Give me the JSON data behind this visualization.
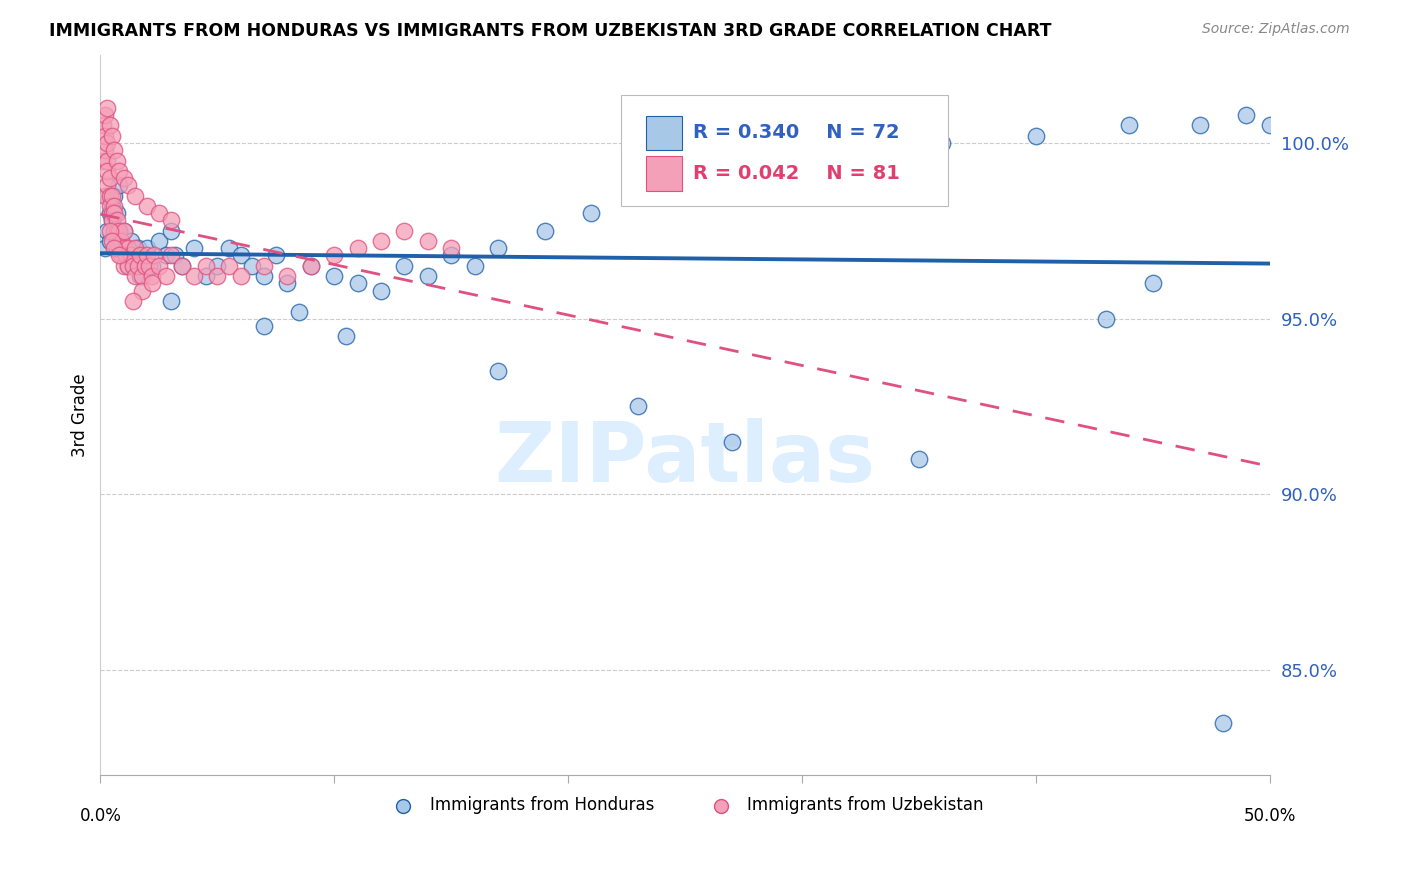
{
  "title": "IMMIGRANTS FROM HONDURAS VS IMMIGRANTS FROM UZBEKISTAN 3RD GRADE CORRELATION CHART",
  "source": "Source: ZipAtlas.com",
  "ylabel": "3rd Grade",
  "legend_r1": "R = 0.340",
  "legend_n1": "N = 72",
  "legend_r2": "R = 0.042",
  "legend_n2": "N = 81",
  "label1": "Immigrants from Honduras",
  "label2": "Immigrants from Uzbekistan",
  "color_blue": "#a8c8e8",
  "color_pink": "#f4a0b8",
  "color_blue_dark": "#2060a8",
  "color_pink_dark": "#e05080",
  "color_blue_text": "#3060c0",
  "color_pink_text": "#e04070",
  "watermark_color": "#ddeeff",
  "xlim": [
    0.0,
    50.0
  ],
  "ylim": [
    82.0,
    102.5
  ],
  "yticks": [
    85.0,
    90.0,
    95.0,
    100.0
  ],
  "hon_x": [
    0.2,
    0.3,
    0.3,
    0.4,
    0.4,
    0.5,
    0.5,
    0.6,
    0.6,
    0.7,
    0.7,
    0.8,
    0.8,
    0.9,
    1.0,
    1.0,
    1.1,
    1.2,
    1.3,
    1.4,
    1.5,
    1.6,
    1.7,
    1.8,
    2.0,
    2.2,
    2.5,
    2.8,
    3.0,
    3.2,
    3.5,
    4.0,
    4.5,
    5.0,
    5.5,
    6.0,
    6.5,
    7.0,
    7.5,
    8.0,
    9.0,
    10.0,
    11.0,
    12.0,
    13.0,
    14.0,
    15.0,
    16.0,
    17.0,
    19.0,
    21.0,
    24.0,
    26.0,
    28.0,
    32.0,
    36.0,
    40.0,
    44.0,
    47.0,
    49.0,
    50.0,
    3.0,
    7.0,
    8.5,
    10.5,
    17.0,
    23.0,
    27.0,
    35.0,
    43.0,
    45.0,
    48.0
  ],
  "hon_y": [
    97.0,
    97.5,
    98.5,
    97.2,
    98.0,
    97.8,
    98.2,
    97.5,
    98.5,
    97.0,
    98.0,
    97.5,
    98.8,
    97.2,
    96.8,
    97.5,
    97.0,
    96.5,
    97.2,
    96.8,
    96.5,
    97.0,
    96.2,
    96.8,
    97.0,
    96.5,
    97.2,
    96.8,
    97.5,
    96.8,
    96.5,
    97.0,
    96.2,
    96.5,
    97.0,
    96.8,
    96.5,
    96.2,
    96.8,
    96.0,
    96.5,
    96.2,
    96.0,
    95.8,
    96.5,
    96.2,
    96.8,
    96.5,
    97.0,
    97.5,
    98.0,
    98.5,
    98.8,
    99.2,
    99.5,
    100.0,
    100.2,
    100.5,
    100.5,
    100.8,
    100.5,
    95.5,
    94.8,
    95.2,
    94.5,
    93.5,
    92.5,
    91.5,
    91.0,
    95.0,
    96.0,
    83.5
  ],
  "uzb_x": [
    0.1,
    0.1,
    0.2,
    0.2,
    0.2,
    0.3,
    0.3,
    0.3,
    0.3,
    0.4,
    0.4,
    0.4,
    0.5,
    0.5,
    0.5,
    0.6,
    0.6,
    0.6,
    0.7,
    0.7,
    0.7,
    0.8,
    0.8,
    0.9,
    0.9,
    1.0,
    1.0,
    1.0,
    1.1,
    1.2,
    1.2,
    1.3,
    1.4,
    1.5,
    1.5,
    1.6,
    1.7,
    1.8,
    1.9,
    2.0,
    2.1,
    2.2,
    2.3,
    2.5,
    2.8,
    3.0,
    3.5,
    4.0,
    4.5,
    5.0,
    5.5,
    6.0,
    7.0,
    8.0,
    9.0,
    10.0,
    11.0,
    12.0,
    13.0,
    14.0,
    15.0,
    0.2,
    0.3,
    0.4,
    0.5,
    0.6,
    0.7,
    0.8,
    1.0,
    1.2,
    1.5,
    2.0,
    2.5,
    3.0,
    0.4,
    0.5,
    0.6,
    0.8,
    1.8,
    2.2,
    1.4
  ],
  "uzb_y": [
    99.5,
    100.5,
    99.8,
    100.2,
    98.5,
    99.5,
    100.0,
    98.8,
    99.2,
    98.5,
    99.0,
    98.2,
    98.0,
    98.5,
    97.8,
    98.2,
    97.5,
    98.0,
    97.5,
    97.8,
    97.2,
    97.5,
    97.0,
    97.2,
    96.8,
    97.0,
    97.5,
    96.5,
    96.8,
    97.0,
    96.5,
    96.8,
    96.5,
    97.0,
    96.2,
    96.5,
    96.8,
    96.2,
    96.5,
    96.8,
    96.5,
    96.2,
    96.8,
    96.5,
    96.2,
    96.8,
    96.5,
    96.2,
    96.5,
    96.2,
    96.5,
    96.2,
    96.5,
    96.2,
    96.5,
    96.8,
    97.0,
    97.2,
    97.5,
    97.2,
    97.0,
    100.8,
    101.0,
    100.5,
    100.2,
    99.8,
    99.5,
    99.2,
    99.0,
    98.8,
    98.5,
    98.2,
    98.0,
    97.8,
    97.5,
    97.2,
    97.0,
    96.8,
    95.8,
    96.0,
    95.5
  ]
}
